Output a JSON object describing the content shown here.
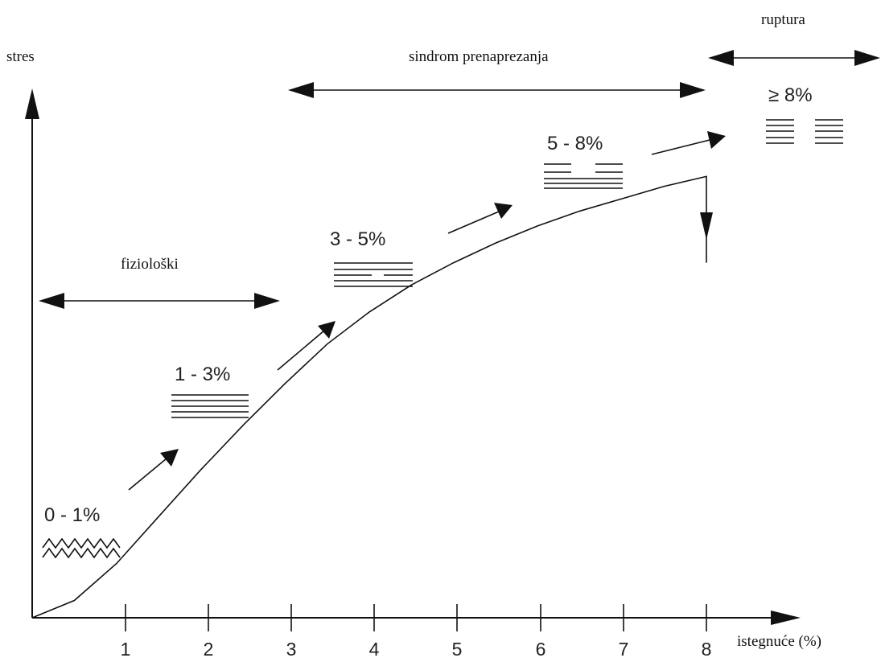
{
  "axes": {
    "y_label": "stres",
    "x_label": "istegnuće (%)",
    "x_ticks": [
      "1",
      "2",
      "3",
      "4",
      "5",
      "6",
      "7",
      "8"
    ]
  },
  "ranges": {
    "physiological": "fiziološki",
    "overload": "sindrom prenaprezanja",
    "rupture": "ruptura"
  },
  "zones": [
    {
      "label": "0 - 1%",
      "fiber_state": "crimped-wavy-icon"
    },
    {
      "label": "1 - 3%",
      "fiber_state": "straight-fibers-icon"
    },
    {
      "label": "3 - 5%",
      "fiber_state": "partial-break-fibers-icon"
    },
    {
      "label": "5 - 8%",
      "fiber_state": "broken-fibers-icon"
    },
    {
      "label": "≥ 8%",
      "fiber_state": "ruptured-fibers-icon"
    }
  ],
  "chart_data": {
    "type": "line",
    "x": [
      0,
      0.5,
      1,
      1.5,
      2,
      2.5,
      3,
      3.5,
      4,
      4.5,
      5,
      5.5,
      6,
      6.5,
      7,
      7.5,
      8,
      8
    ],
    "y": [
      0,
      0.35,
      1.1,
      2.05,
      3.0,
      3.9,
      4.75,
      5.55,
      6.2,
      6.75,
      7.2,
      7.6,
      7.95,
      8.25,
      8.5,
      8.75,
      8.95,
      7.2
    ],
    "xlim": [
      0,
      8
    ],
    "grid": false
  }
}
